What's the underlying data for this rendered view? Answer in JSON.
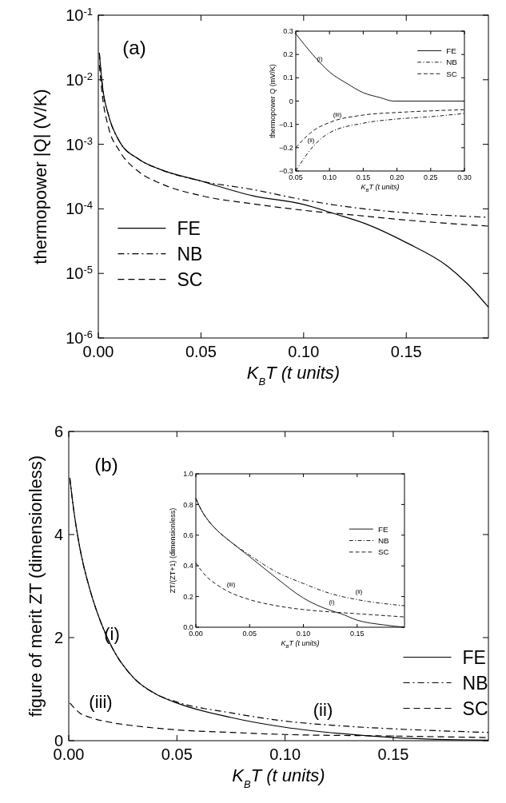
{
  "chart_data": [
    {
      "type": "line",
      "xlabel": "K$_{B}$T  (t units)",
      "ylabel": "thermopower |Q| (V/K)",
      "log": "y",
      "xlim": [
        0,
        0.19
      ],
      "xticks": [
        {
          "value": 0,
          "label": "0.00"
        },
        {
          "value": 0.05,
          "label": "0.05"
        },
        {
          "value": 0.1,
          "label": "0.10"
        },
        {
          "value": 0.15,
          "label": "0.15"
        }
      ],
      "ylim": [
        1e-06,
        0.1
      ],
      "yticks": [
        {
          "value": 1e-06,
          "label": "10$^{-6}$"
        },
        {
          "value": 1e-05,
          "label": "10$^{-5}$"
        },
        {
          "value": 0.0001,
          "label": "10$^{-4}$"
        },
        {
          "value": 0.001,
          "label": "10$^{-3}$"
        },
        {
          "value": 0.01,
          "label": "10$^{-2}$"
        },
        {
          "value": 0.1,
          "label": "10$^{-1}$"
        }
      ],
      "legend": "left",
      "grid": false,
      "annotations": [
        "(a)"
      ],
      "series": [
        {
          "name": "FE",
          "color": "#000000",
          "line_style": "solid",
          "x": [
            0.0005,
            0.002,
            0.005,
            0.01,
            0.02,
            0.03,
            0.05,
            0.075,
            0.1,
            0.115,
            0.13,
            0.15,
            0.17,
            0.18,
            0.19
          ],
          "values": [
            0.026,
            0.008,
            0.0028,
            0.00115,
            0.00058,
            0.00041,
            0.00027,
            0.00016,
            0.000117,
            8.4e-05,
            5.9e-05,
            3e-05,
            1.3e-05,
            6.8e-06,
            3e-06
          ]
        },
        {
          "name": "NB",
          "color": "#000000",
          "line_style": "dashdot",
          "x": [
            0.0005,
            0.002,
            0.005,
            0.01,
            0.02,
            0.03,
            0.05,
            0.075,
            0.1,
            0.125,
            0.15,
            0.19
          ],
          "values": [
            0.026,
            0.008,
            0.0028,
            0.00115,
            0.00058,
            0.00041,
            0.00027,
            0.0002,
            0.000138,
            0.000104,
            8.7e-05,
            7.4e-05
          ]
        },
        {
          "name": "SC",
          "color": "#000000",
          "line_style": "dashed",
          "x": [
            0.0005,
            0.002,
            0.005,
            0.01,
            0.02,
            0.03,
            0.05,
            0.075,
            0.1,
            0.125,
            0.15,
            0.19
          ],
          "values": [
            0.017,
            0.0056,
            0.0018,
            0.00082,
            0.00037,
            0.00025,
            0.00016,
            0.00012,
            9.5e-05,
            8e-05,
            6.7e-05,
            5.4e-05
          ]
        }
      ]
    },
    {
      "type": "line",
      "xlabel": "K$_{B}$T (t units)",
      "ylabel": "thermopower Q (mV/K)",
      "xlim": [
        0.05,
        0.3
      ],
      "xticks": [
        {
          "value": 0.05,
          "label": "0.05"
        },
        {
          "value": 0.1,
          "label": "0.10"
        },
        {
          "value": 0.15,
          "label": "0.15"
        },
        {
          "value": 0.2,
          "label": "0.20"
        },
        {
          "value": 0.25,
          "label": "0.25"
        },
        {
          "value": 0.3,
          "label": "0.30"
        }
      ],
      "ylim": [
        -0.3,
        0.3
      ],
      "yticks": [
        {
          "value": -0.3,
          "label": "−0.3"
        },
        {
          "value": -0.2,
          "label": "−0.2"
        },
        {
          "value": -0.1,
          "label": "−0.1"
        },
        0,
        0.1,
        0.2,
        0.3
      ],
      "legend": "top right",
      "grid": false,
      "annotations": [
        "(i)",
        "(iii)",
        "(ii)"
      ],
      "series": [
        {
          "name": "FE",
          "color": "#000000",
          "line_style": "solid",
          "x": [
            0.05,
            0.075,
            0.1,
            0.125,
            0.15,
            0.175,
            0.195,
            0.3
          ],
          "values": [
            0.289,
            0.2,
            0.125,
            0.077,
            0.036,
            0.015,
            0,
            0
          ]
        },
        {
          "name": "NB",
          "color": "#000000",
          "line_style": "dashdot",
          "x": [
            0.05,
            0.075,
            0.1,
            0.15,
            0.2,
            0.25,
            0.3
          ],
          "values": [
            -0.3,
            -0.197,
            -0.136,
            -0.095,
            -0.077,
            -0.067,
            -0.053
          ]
        },
        {
          "name": "SC",
          "color": "#000000",
          "line_style": "dashed",
          "x": [
            0.05,
            0.075,
            0.1,
            0.15,
            0.2,
            0.25,
            0.3
          ],
          "values": [
            -0.2,
            -0.129,
            -0.092,
            -0.06,
            -0.049,
            -0.042,
            -0.037
          ]
        }
      ]
    },
    {
      "type": "line",
      "xlabel": "K$_{B}$T  (t units)",
      "ylabel": "figure of merit ZT (dimensionless)",
      "xlim": [
        0,
        0.194
      ],
      "xticks": [
        {
          "value": 0,
          "label": "0.00"
        },
        {
          "value": 0.05,
          "label": "0.05"
        },
        {
          "value": 0.1,
          "label": "0.10"
        },
        {
          "value": 0.15,
          "label": "0.15"
        }
      ],
      "ylim": [
        0,
        6
      ],
      "yticks": [
        0,
        2,
        4,
        6
      ],
      "legend": "bottom right",
      "grid": false,
      "annotations": [
        "(b)",
        "(i)",
        "(iii)",
        "(ii)"
      ],
      "series": [
        {
          "name": "FE",
          "color": "#000000",
          "line_style": "solid",
          "x": [
            0.0005,
            0.002,
            0.005,
            0.01,
            0.015,
            0.02,
            0.03,
            0.04,
            0.05,
            0.075,
            0.1,
            0.125,
            0.15,
            0.175,
            0.194
          ],
          "values": [
            5.1,
            4.57,
            3.77,
            2.9,
            2.28,
            1.81,
            1.22,
            0.91,
            0.73,
            0.45,
            0.26,
            0.14,
            0.06,
            0.02,
            0.01
          ]
        },
        {
          "name": "NB",
          "color": "#000000",
          "line_style": "dashdot",
          "x": [
            0.0005,
            0.002,
            0.005,
            0.01,
            0.015,
            0.02,
            0.03,
            0.04,
            0.05,
            0.075,
            0.1,
            0.125,
            0.15,
            0.194
          ],
          "values": [
            5.1,
            4.57,
            3.77,
            2.9,
            2.28,
            1.81,
            1.22,
            0.91,
            0.75,
            0.54,
            0.38,
            0.29,
            0.23,
            0.16
          ]
        },
        {
          "name": "SC",
          "color": "#000000",
          "line_style": "dashed",
          "x": [
            0.0005,
            0.002,
            0.005,
            0.01,
            0.02,
            0.03,
            0.05,
            0.075,
            0.1,
            0.15,
            0.194
          ],
          "values": [
            0.73,
            0.66,
            0.54,
            0.45,
            0.35,
            0.29,
            0.21,
            0.16,
            0.12,
            0.09,
            0.06
          ]
        }
      ]
    },
    {
      "type": "line",
      "xlabel": "K$_{B}$T  (t units)",
      "ylabel": "ZT/(ZT+1) (dimensionless)",
      "xlim": [
        0,
        0.194
      ],
      "xticks": [
        {
          "value": 0,
          "label": "0.00"
        },
        {
          "value": 0.05,
          "label": "0.05"
        },
        {
          "value": 0.1,
          "label": "0.10"
        },
        {
          "value": 0.15,
          "label": "0.15"
        }
      ],
      "ylim": [
        0,
        1
      ],
      "yticks": [
        {
          "value": 0,
          "label": "0.0"
        },
        0.2,
        0.4,
        0.6,
        0.8,
        {
          "value": 1,
          "label": "1.0"
        }
      ],
      "legend": "right",
      "grid": false,
      "annotations": [
        "(iii)",
        "(ii)",
        "(i)"
      ],
      "series": [
        {
          "name": "FE",
          "color": "#000000",
          "line_style": "solid",
          "x": [
            0,
            0.005,
            0.01,
            0.02,
            0.03,
            0.05,
            0.075,
            0.1,
            0.125,
            0.135,
            0.15,
            0.175,
            0.194
          ],
          "values": [
            0.84,
            0.765,
            0.71,
            0.63,
            0.57,
            0.46,
            0.32,
            0.19,
            0.11,
            0.088,
            0.046,
            0.015,
            0
          ]
        },
        {
          "name": "NB",
          "color": "#000000",
          "line_style": "dashdot",
          "x": [
            0,
            0.005,
            0.01,
            0.02,
            0.03,
            0.05,
            0.075,
            0.1,
            0.125,
            0.15,
            0.194
          ],
          "values": [
            0.84,
            0.765,
            0.71,
            0.63,
            0.57,
            0.47,
            0.36,
            0.285,
            0.22,
            0.18,
            0.14
          ]
        },
        {
          "name": "SC",
          "color": "#000000",
          "line_style": "dashed",
          "x": [
            0,
            0.005,
            0.01,
            0.02,
            0.03,
            0.05,
            0.075,
            0.1,
            0.125,
            0.15,
            0.194
          ],
          "values": [
            0.42,
            0.37,
            0.33,
            0.275,
            0.233,
            0.18,
            0.14,
            0.115,
            0.1,
            0.088,
            0.067
          ]
        }
      ]
    }
  ]
}
